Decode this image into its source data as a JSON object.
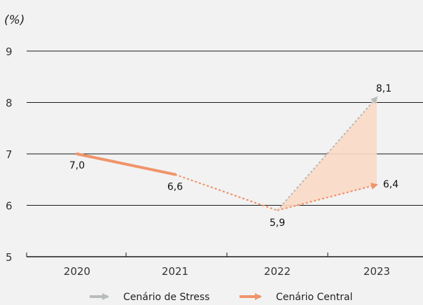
{
  "chart_data": {
    "type": "line",
    "unit_label": "(%)",
    "categories": [
      "2020",
      "2021",
      "2022",
      "2023"
    ],
    "yticks": [
      "9",
      "8",
      "7",
      "6",
      "5"
    ],
    "ylim": [
      5,
      9
    ],
    "grid": true,
    "series": [
      {
        "name": "Cenário Central",
        "color": "#f0946a",
        "points": [
          {
            "x": "2020",
            "y": 7.0,
            "label": "7,0",
            "style": "solid"
          },
          {
            "x": "2021",
            "y": 6.6,
            "label": "6,6",
            "style": "solid"
          },
          {
            "x": "2022",
            "y": 5.9,
            "label": "5,9",
            "style": "dotted"
          },
          {
            "x": "2023",
            "y": 6.4,
            "label": "6,4",
            "style": "dotted"
          }
        ]
      },
      {
        "name": "Cenário de Stress",
        "color": "#b9bdba",
        "points": [
          {
            "x": "2022",
            "y": 5.9,
            "style": "dotted"
          },
          {
            "x": "2023",
            "y": 8.1,
            "label": "8,1",
            "style": "dotted"
          }
        ]
      }
    ],
    "band_color": "#fbd9c6",
    "legend": {
      "placement": "bottom",
      "entries": [
        {
          "name": "Cenário de Stress",
          "color": "#b9bdba"
        },
        {
          "name": "Cenário Central",
          "color": "#f0946a"
        }
      ]
    }
  }
}
